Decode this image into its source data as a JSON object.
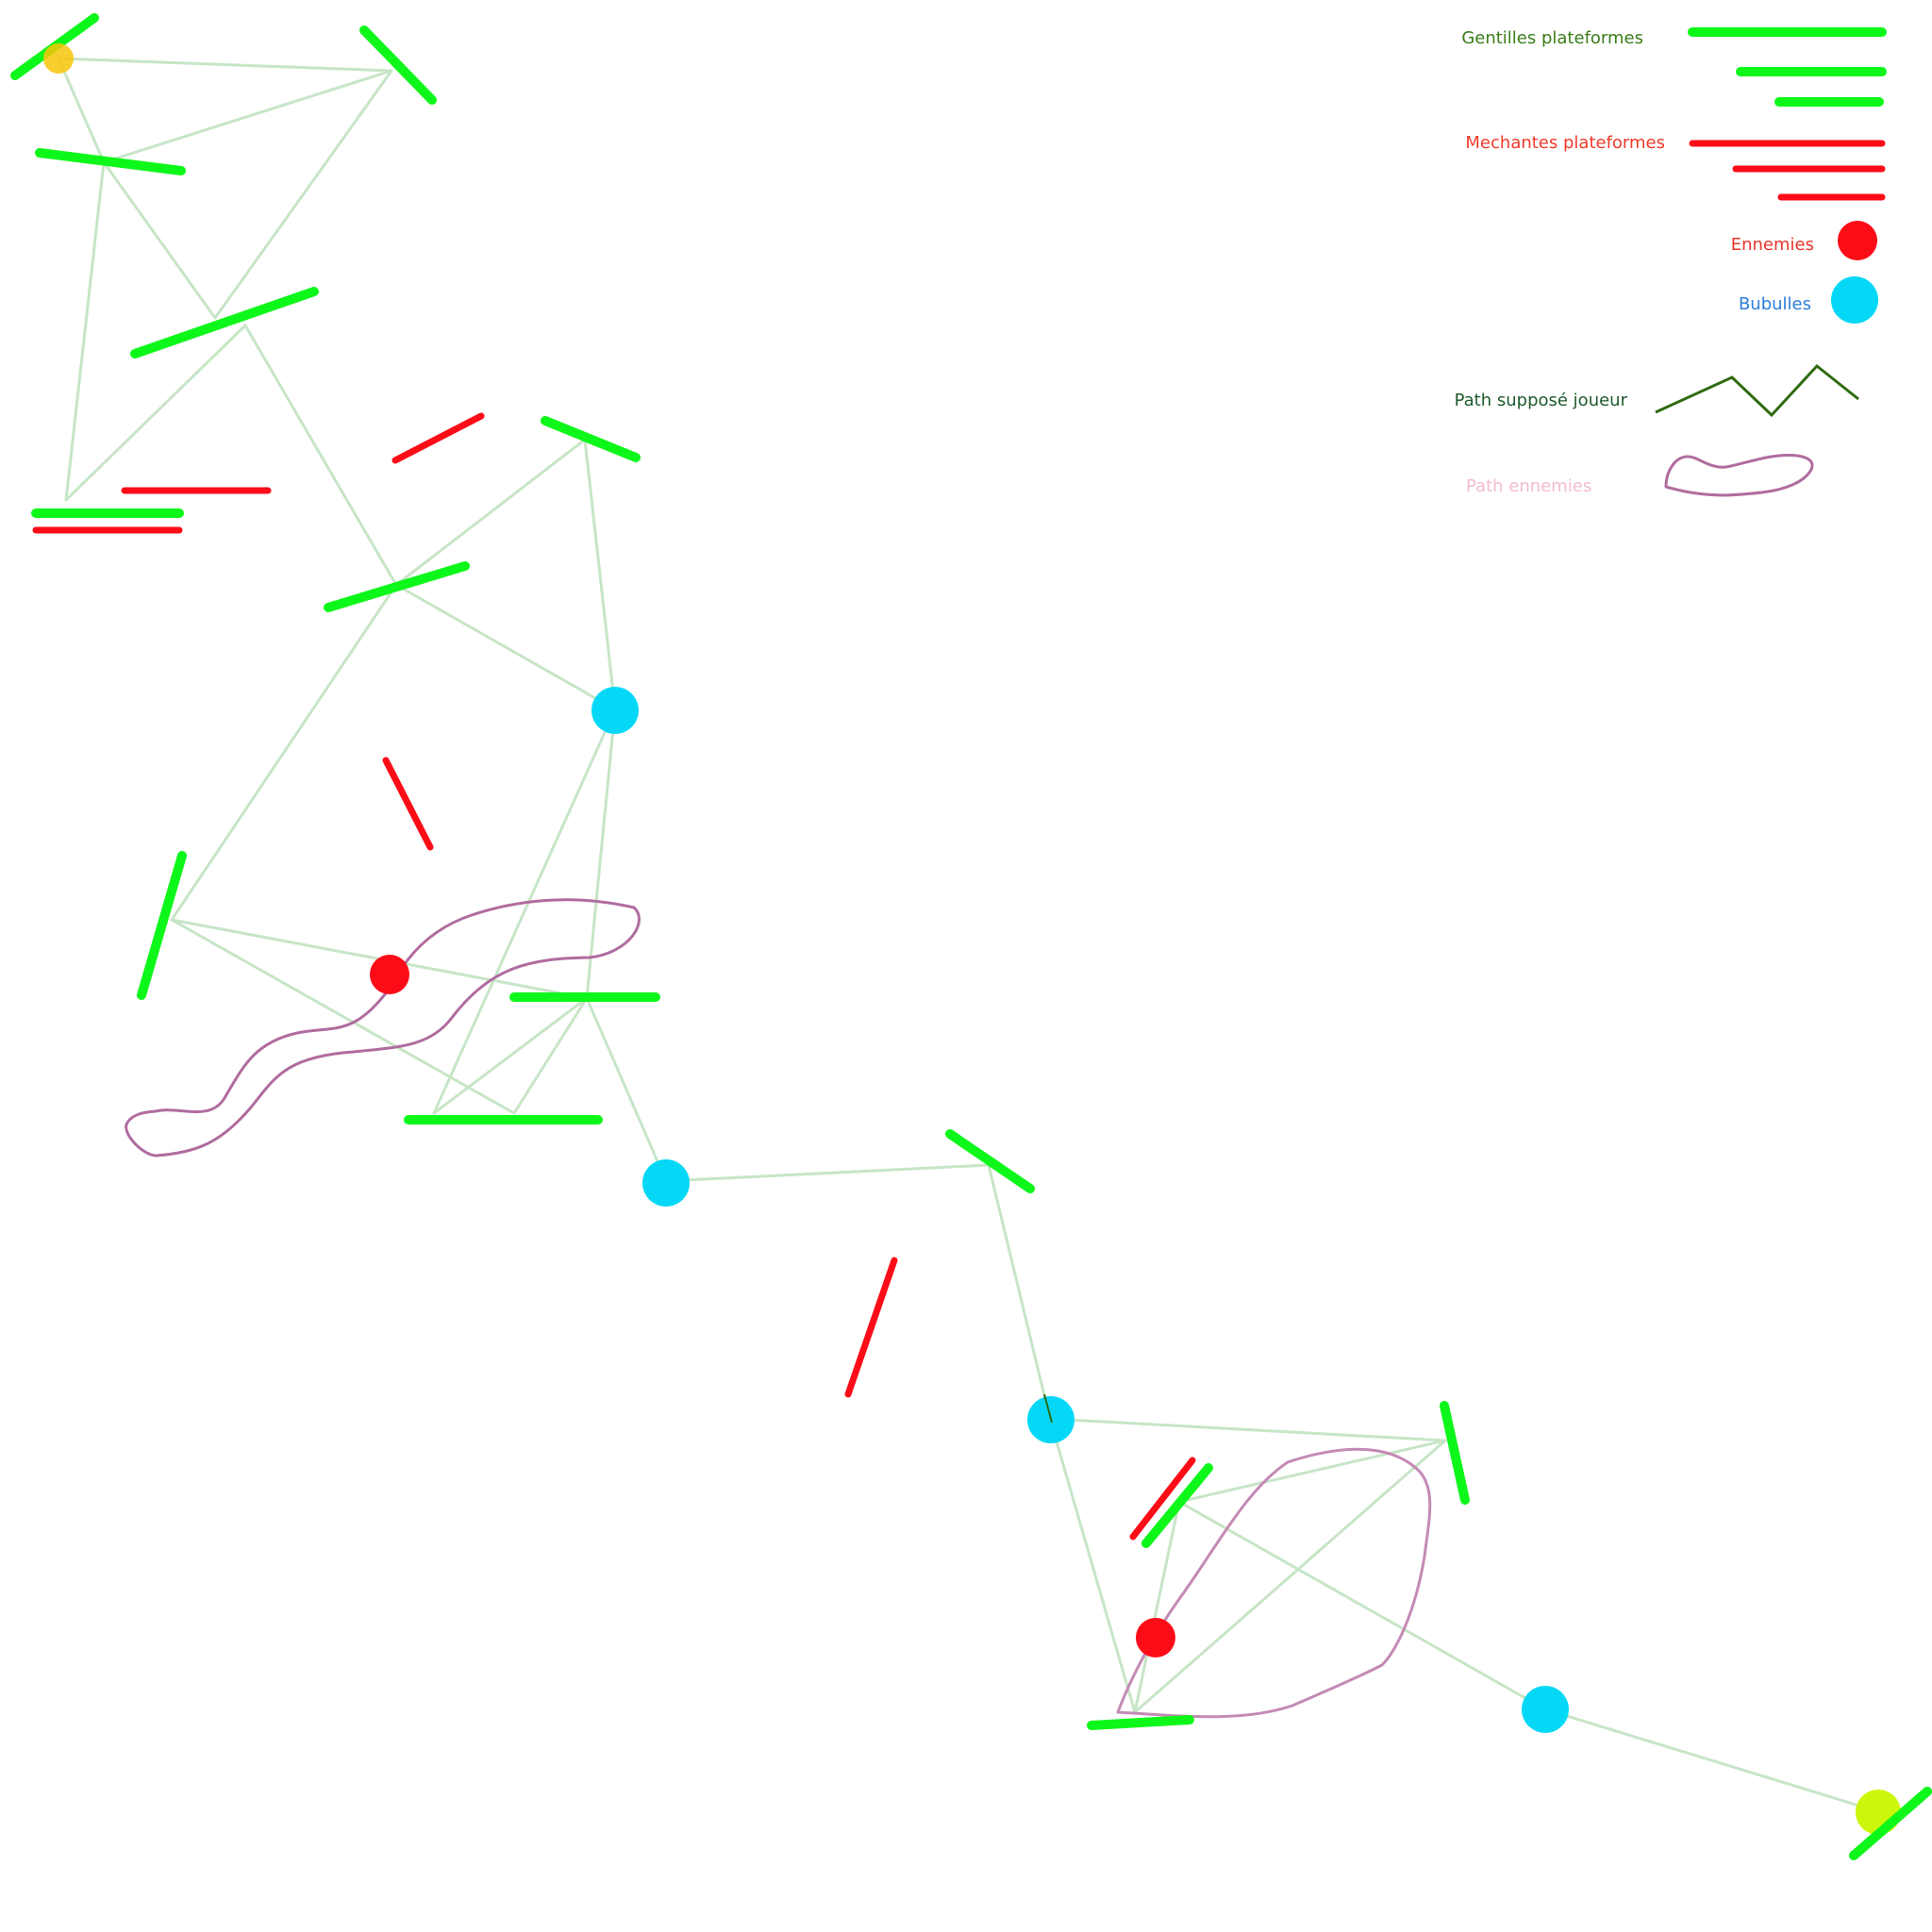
{
  "legend": {
    "good_platforms": "Gentilles plateformes",
    "bad_platforms": "Mechantes plateformes",
    "enemies": "Ennemies",
    "bubbles": "Bubulles",
    "player_path": "Path supposé joueur",
    "enemy_path": "Path ennemies"
  },
  "colors": {
    "good_platform": "#0ef71a",
    "bad_platform": "#fb0c17",
    "enemy": "#fb0c17",
    "bubble": "#05d8f7",
    "start_point": "#f7c50b",
    "end_point": "#ccf70b",
    "link": "#c7e5c7",
    "player_path": "#2f6b10",
    "enemy_path": "#b06c9e",
    "legend_good_text": "#3a7d1a",
    "legend_bad_text": "#f03a2a",
    "legend_enemy_text": "#e8352a",
    "legend_bubble_text": "#2a7fd8",
    "legend_player_text": "#1e5b2c",
    "legend_enemy_path_text": "#f3bcd0"
  }
}
